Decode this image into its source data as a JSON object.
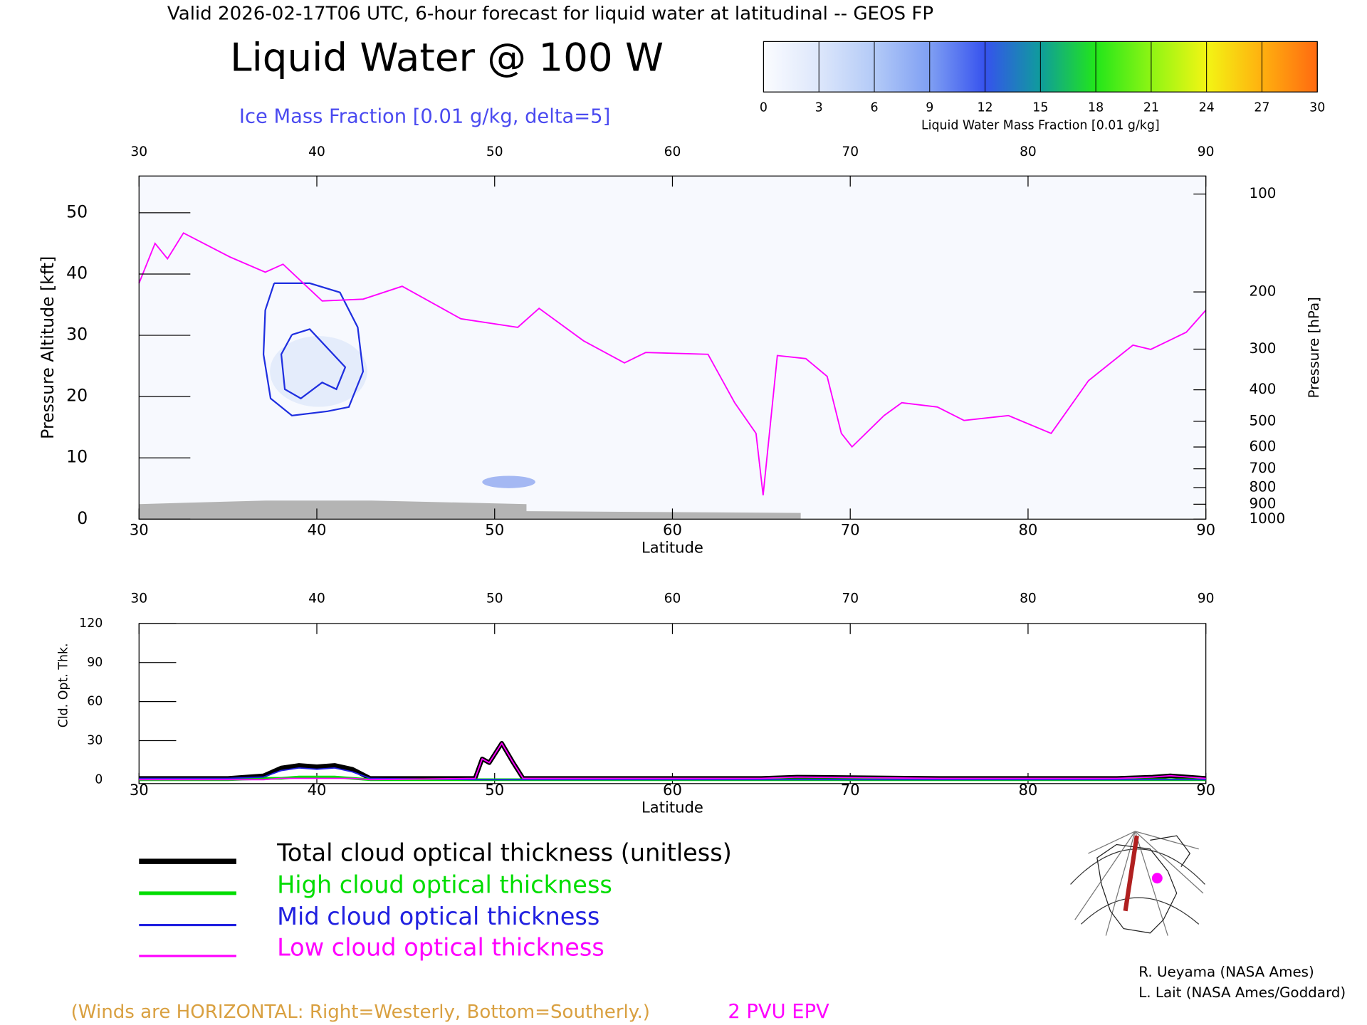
{
  "chart_data": [
    {
      "type": "contour",
      "suptitle": "Valid 2026-02-17T06 UTC, 6-hour forecast for liquid water at latitudinal -- GEOS FP",
      "title": "Liquid Water @ 100 W",
      "subtitle": "Ice Mass Fraction [0.01 g/kg, delta=5]",
      "x_label": "Latitude",
      "y_label": "Pressure Altitude [kft]",
      "y2_label": "Pressure [hPa]",
      "xlim": [
        30,
        90
      ],
      "xticks": [
        30,
        40,
        50,
        60,
        70,
        80,
        90
      ],
      "ylim": [
        0,
        56
      ],
      "yticks": [
        0,
        10,
        20,
        30,
        40,
        50
      ],
      "y2lim": [
        1000,
        88
      ],
      "y2_log": true,
      "y2ticks": [
        100,
        200,
        300,
        400,
        500,
        600,
        700,
        800,
        900,
        1000
      ],
      "colorbar": {
        "label": "Liquid Water Mass Fraction [0.01 g/kg]",
        "ticks": [
          0,
          3,
          6,
          9,
          12,
          15,
          18,
          21,
          24,
          27,
          30
        ],
        "colors": [
          "#fbfcff",
          "#dde7fb",
          "#b3caf7",
          "#7f9ff3",
          "#3652ee",
          "#0f9c9c",
          "#22e61a",
          "#8ef514",
          "#f3f514",
          "#ffb00f",
          "#ff6a10",
          "#ff2a14"
        ]
      },
      "contours": [
        {
          "color": "#1f2fe0",
          "x": [
            37.6,
            39.6,
            41.3,
            42.3,
            42.6,
            41.8,
            40.6,
            38.6,
            37.4,
            37.0,
            37.1,
            37.6
          ],
          "values": [
            38.5,
            38.5,
            37.0,
            31.3,
            24.1,
            18.3,
            17.6,
            16.9,
            19.7,
            26.9,
            34.1,
            38.5
          ]
        },
        {
          "color": "#1f2fe0",
          "x": [
            38.6,
            39.6,
            41.6,
            41.1,
            40.3,
            39.1,
            38.2,
            38.0,
            38.6
          ],
          "values": [
            30.1,
            31.0,
            24.8,
            21.2,
            22.3,
            19.7,
            21.2,
            26.9,
            30.1
          ]
        }
      ],
      "series": [
        {
          "name": "2 PVU EPV",
          "color": "#ff00ff",
          "x": [
            30.0,
            30.9,
            31.6,
            32.5,
            35.1,
            37.1,
            38.1,
            40.3,
            42.6,
            44.8,
            48.1,
            51.3,
            52.5,
            55.0,
            57.3,
            58.5,
            62.0,
            63.5,
            64.7,
            65.1,
            65.9,
            67.5,
            68.7,
            69.5,
            70.1,
            71.9,
            72.9,
            74.9,
            76.4,
            78.9,
            81.3,
            83.4,
            85.9,
            86.9,
            88.9,
            90.0
          ],
          "values": [
            38.5,
            45.0,
            42.5,
            46.7,
            42.8,
            40.3,
            41.6,
            35.6,
            35.9,
            38.0,
            32.7,
            31.3,
            34.4,
            29.1,
            25.5,
            27.2,
            26.9,
            19.0,
            14.0,
            3.9,
            26.7,
            26.2,
            23.3,
            14.0,
            11.8,
            16.9,
            19.0,
            18.3,
            16.1,
            16.9,
            14.0,
            22.6,
            28.4,
            27.7,
            30.5,
            34.1
          ]
        }
      ]
    },
    {
      "type": "line",
      "x_label": "Latitude",
      "y_label": "Cld. Opt. Thk.",
      "xlim": [
        30,
        90
      ],
      "xticks": [
        30,
        40,
        50,
        60,
        70,
        80,
        90
      ],
      "ylim": [
        -3,
        120
      ],
      "yticks": [
        0,
        30,
        60,
        90,
        120
      ],
      "x": [
        30,
        35,
        37,
        38,
        39,
        40,
        41,
        42,
        43,
        48.9,
        49.3,
        49.7,
        50.4,
        51,
        51.6,
        53,
        65,
        67,
        75,
        85,
        87,
        88,
        90
      ],
      "series": [
        {
          "name": "Total cloud optical thickness (unitless)",
          "color": "#000000",
          "line_width": 5,
          "values": [
            1,
            1,
            3,
            9,
            11,
            10,
            11,
            8,
            1,
            1,
            16,
            13,
            28,
            14,
            1,
            1,
            1,
            2,
            1,
            1,
            2,
            3,
            1
          ]
        },
        {
          "name": "High cloud optical thickness",
          "color": "#00dd00",
          "line_width": 3,
          "values": [
            0,
            0,
            1,
            1,
            2,
            2,
            2,
            1,
            0,
            0,
            0,
            0,
            0,
            0,
            0,
            0,
            0,
            0,
            0,
            0,
            0,
            0,
            0
          ]
        },
        {
          "name": "Mid cloud optical thickness",
          "color": "#2020e0",
          "line_width": 1.5,
          "values": [
            1,
            1,
            2,
            7,
            9,
            8,
            9,
            6,
            1,
            0,
            0,
            0,
            0,
            0,
            0,
            0,
            0,
            0,
            0,
            0,
            0,
            0,
            0
          ]
        },
        {
          "name": "Low cloud optical thickness",
          "color": "#ff00ff",
          "line_width": 1.5,
          "values": [
            0,
            0,
            0,
            1,
            1,
            1,
            1,
            1,
            0,
            1,
            16,
            13,
            28,
            14,
            1,
            1,
            1,
            2,
            1,
            1,
            2,
            3,
            1
          ]
        }
      ]
    }
  ],
  "notes": {
    "winds": "(Winds are HORIZONTAL: Right=Westerly, Bottom=Southerly.)",
    "credits": [
      "R. Ueyama (NASA Ames)",
      "L. Lait (NASA Ames/Goddard)"
    ]
  }
}
